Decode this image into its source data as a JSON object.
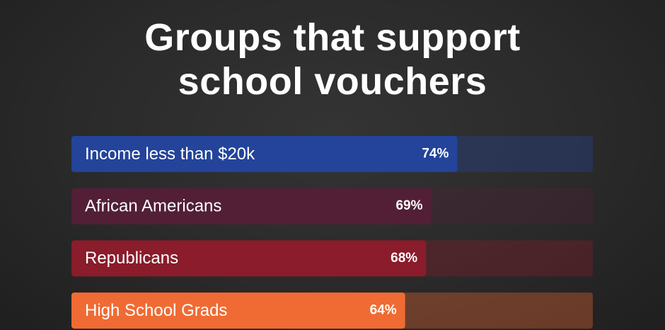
{
  "chart_data": {
    "type": "bar",
    "orientation": "horizontal",
    "title": "Groups that support school vouchers",
    "categories": [
      "Income less than $20k",
      "African Americans",
      "Republicans",
      "High School Grads"
    ],
    "values": [
      74,
      69,
      68,
      64
    ],
    "value_labels": [
      "74%",
      "69%",
      "68%",
      "64%"
    ],
    "colors": [
      "#23449a",
      "#521f37",
      "#8a1c2b",
      "#ef6b33"
    ],
    "xlim": [
      0,
      100
    ]
  }
}
